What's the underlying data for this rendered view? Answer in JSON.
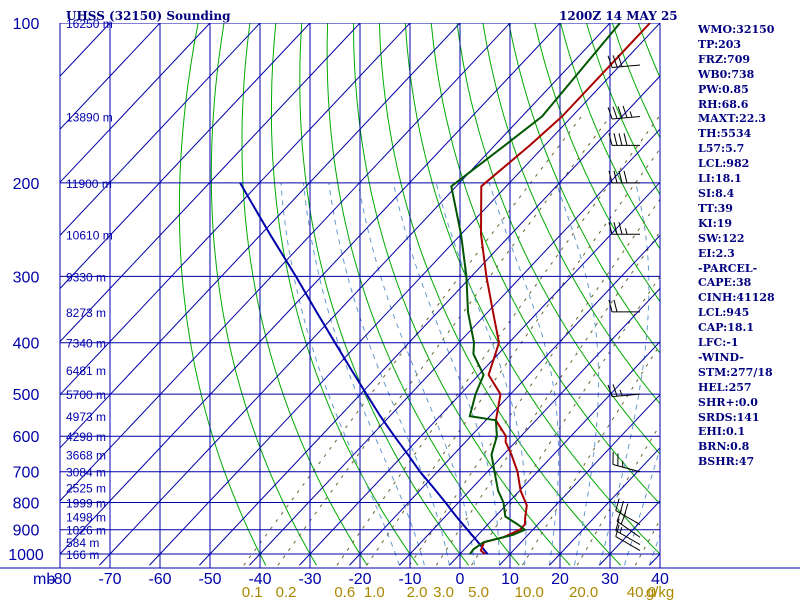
{
  "header": {
    "station": "UHSS (32150) Sounding",
    "time": "1200Z 14 MAY 25"
  },
  "indices": [
    "WMO:32150",
    "TP:203",
    "FRZ:709",
    "WB0:738",
    "PW:0.85",
    "RH:68.6",
    "MAXT:22.3",
    "TH:5534",
    "L57:5.7",
    "LCL:982",
    "LI:18.1",
    "SI:8.4",
    "TT:39",
    "KI:19",
    "SW:122",
    "EI:2.3",
    "-PARCEL-",
    "CAPE:38",
    "CINH:41128",
    "LCL:945",
    "CAP:18.1",
    "LFC:-1",
    "-WIND-",
    "STM:277/18",
    "HEL:257",
    "SHR+:0.0",
    "SRDS:141",
    "EHI:0.1",
    "BRN:0.8",
    "BSHR:47"
  ],
  "colors": {
    "grid": "#0000aa",
    "isotherm": "#0000aa",
    "dry_adiabat": "#00aa00",
    "moist_adiabat": "#6699cc",
    "mixing_ratio": "#666633",
    "temperature": "#aa0000",
    "dewpoint": "#005500",
    "parcel": "#0000aa",
    "labels": "#0000aa",
    "mixing_labels": "#aa8800",
    "title": "#000080"
  },
  "chart_data": {
    "type": "line",
    "skew_deg_per_decade": 100,
    "xlim": [
      -80,
      40
    ],
    "pressure_range": [
      1000,
      100
    ],
    "x_ticks": [
      -80,
      -70,
      -60,
      -50,
      -40,
      -30,
      -20,
      -10,
      0,
      10,
      20,
      30,
      40
    ],
    "x_tick_labels": [
      "-80",
      "-70",
      "-60",
      "-50",
      "-40",
      "-30",
      "-20",
      "-10",
      "0",
      "10",
      "20",
      "30",
      "40"
    ],
    "x_prefix": "mb",
    "y_ticks": [
      1000,
      900,
      800,
      700,
      600,
      500,
      400,
      300,
      200,
      100
    ],
    "y_tick_labels": [
      "1000",
      "900",
      "800",
      "700",
      "600",
      "500",
      "400",
      "300",
      "200",
      "100"
    ],
    "height_labels": [
      {
        "p": 1000,
        "label": "166 m"
      },
      {
        "p": 950,
        "label": "584 m"
      },
      {
        "p": 900,
        "label": "1026 m"
      },
      {
        "p": 850,
        "label": "1498 m"
      },
      {
        "p": 800,
        "label": "1999 m"
      },
      {
        "p": 750,
        "label": "2525 m"
      },
      {
        "p": 700,
        "label": "3084 m"
      },
      {
        "p": 650,
        "label": "3668 m"
      },
      {
        "p": 600,
        "label": "4298 m"
      },
      {
        "p": 550,
        "label": "4973 m"
      },
      {
        "p": 500,
        "label": "5700 m"
      },
      {
        "p": 450,
        "label": "6481 m"
      },
      {
        "p": 400,
        "label": "7340 m"
      },
      {
        "p": 350,
        "label": "8273 m"
      },
      {
        "p": 300,
        "label": "9330 m"
      },
      {
        "p": 250,
        "label": "10610 m"
      },
      {
        "p": 200,
        "label": "11900 m"
      },
      {
        "p": 150,
        "label": "13890 m"
      },
      {
        "p": 100,
        "label": "16250 m"
      }
    ],
    "mixing_ratio_lines": [
      0.1,
      0.2,
      0.6,
      1.0,
      2.0,
      3.0,
      5.0,
      10.0,
      20.0,
      40.0
    ],
    "mixing_ratio_labels": [
      "0.1",
      "0.2",
      "0.6",
      "1.0",
      "2.0",
      "3.0",
      "5.0",
      "10.0",
      "20.0",
      "40.0"
    ],
    "mixing_ratio_unit": "g/kg",
    "series": [
      {
        "kind": "temperature",
        "p": [
          1000,
          985,
          950,
          930,
          900,
          880,
          850,
          810,
          760,
          700,
          650,
          615,
          600,
          560,
          500,
          460,
          400,
          350,
          300,
          250,
          203,
          170,
          150,
          100
        ],
        "t": [
          5.0,
          3.5,
          2.6,
          5.5,
          7.4,
          7.4,
          6.0,
          4.2,
          0.2,
          -4.0,
          -8.4,
          -12.0,
          -13.0,
          -18.0,
          -22.0,
          -28.0,
          -32.0,
          -39.0,
          -47.0,
          -56.0,
          -65.0,
          -63.0,
          -62.0,
          -62.0
        ]
      },
      {
        "kind": "dewpoint",
        "p": [
          1000,
          980,
          950,
          920,
          900,
          880,
          850,
          800,
          760,
          700,
          650,
          600,
          560,
          550,
          500,
          460,
          420,
          400,
          350,
          300,
          250,
          203,
          170,
          150,
          100
        ],
        "td": [
          2.0,
          1.8,
          2.5,
          7.0,
          8.4,
          6.0,
          2.0,
          -1.0,
          -4.3,
          -8.6,
          -12.4,
          -14.8,
          -18.0,
          -24.0,
          -27.0,
          -29.0,
          -35.0,
          -37.0,
          -44.0,
          -51.0,
          -60.0,
          -71.0,
          -68.0,
          -66.0,
          -68.0
        ]
      },
      {
        "kind": "parcel",
        "p": [
          1000,
          950,
          900,
          850,
          800,
          750,
          700,
          650,
          600,
          550,
          500,
          450,
          400,
          350,
          300,
          250,
          200
        ],
        "t": [
          5.5,
          1.4,
          -3.1,
          -7.8,
          -12.6,
          -17.8,
          -23.5,
          -29.1,
          -35.3,
          -41.9,
          -48.8,
          -56.4,
          -64.8,
          -74.3,
          -85.1,
          -98.2,
          -113.9
        ]
      }
    ],
    "wind_barbs": [
      {
        "p": 985,
        "dir": 300,
        "spd": 10
      },
      {
        "p": 960,
        "dir": 300,
        "spd": 15
      },
      {
        "p": 930,
        "dir": 305,
        "spd": 20
      },
      {
        "p": 880,
        "dir": 300,
        "spd": 30
      },
      {
        "p": 700,
        "dir": 285,
        "spd": 25
      },
      {
        "p": 500,
        "dir": 265,
        "spd": 25
      },
      {
        "p": 350,
        "dir": 270,
        "spd": 20
      },
      {
        "p": 250,
        "dir": 270,
        "spd": 35
      },
      {
        "p": 200,
        "dir": 270,
        "spd": 40
      },
      {
        "p": 170,
        "dir": 270,
        "spd": 40
      },
      {
        "p": 150,
        "dir": 265,
        "spd": 45
      },
      {
        "p": 120,
        "dir": 265,
        "spd": 30
      }
    ]
  }
}
